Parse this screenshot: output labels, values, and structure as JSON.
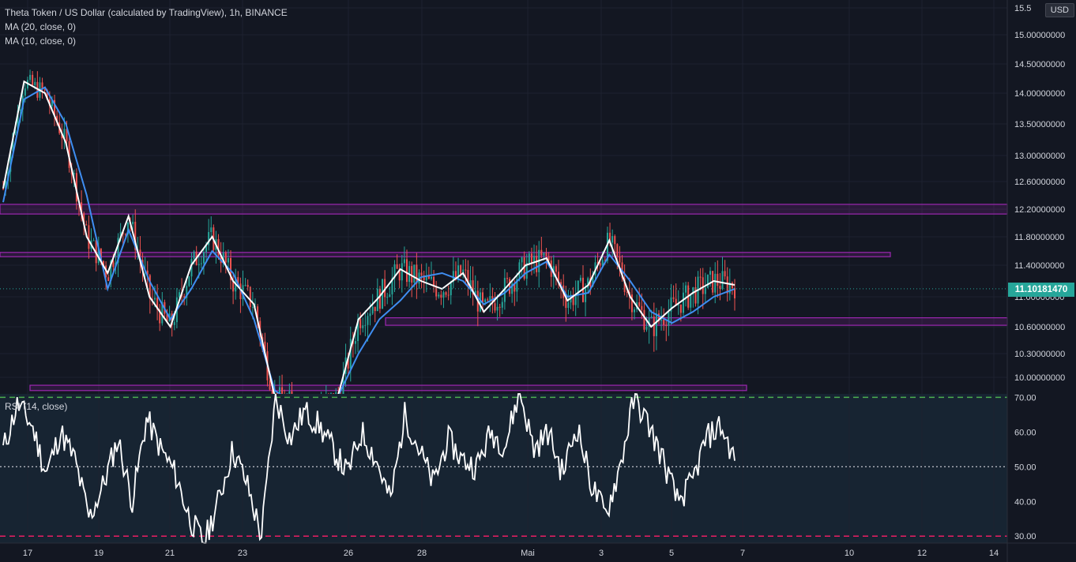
{
  "legend": {
    "title": "Theta Token / US Dollar (calculated by TradingView), 1h, BINANCE",
    "ma20": "MA (20, close, 0)",
    "ma10": "MA (10, close, 0)",
    "rsi": "RSI (14, close)"
  },
  "currency": "USD",
  "current_price": "11.10181470",
  "colors": {
    "background": "#131722",
    "up": "#26a69a",
    "down": "#ef5350",
    "ma20": "#3f8ef2",
    "ma10": "#ffffff",
    "zone": "#9c27b0",
    "rsi_line": "#ffffff",
    "rsi_upper": "#4caf50",
    "rsi_lower": "#e91e63",
    "rsi_bg": "#172432"
  },
  "chart_data": [
    {
      "type": "candlestick",
      "title": "Theta Token / US Dollar (calculated by TradingView), 1h, BINANCE",
      "price_ticks": [
        "15.5",
        "15.00000000",
        "14.50000000",
        "14.00000000",
        "13.50000000",
        "13.00000000",
        "12.60000000",
        "12.20000000",
        "11.80000000",
        "11.40000000",
        "11.00000000",
        "10.60000000",
        "10.30000000",
        "10.00000000"
      ],
      "x_ticks": [
        "17",
        "19",
        "21",
        "23",
        "26",
        "28",
        "Mai",
        "3",
        "5",
        "7",
        "10",
        "12",
        "14"
      ],
      "series": [
        {
          "name": "MA (20, close, 0)",
          "points": [
            [
              0,
              12.3
            ],
            [
              1,
              13.9
            ],
            [
              2,
              14.1
            ],
            [
              3,
              13.5
            ],
            [
              4,
              12.4
            ],
            [
              5,
              11.1
            ],
            [
              6,
              11.9
            ],
            [
              7,
              11.2
            ],
            [
              8,
              10.7
            ],
            [
              9,
              11.1
            ],
            [
              10,
              11.6
            ],
            [
              11,
              11.3
            ],
            [
              12,
              10.7
            ],
            [
              13,
              9.8
            ],
            [
              14,
              9.6
            ],
            [
              15,
              9.6
            ],
            [
              16,
              9.7
            ],
            [
              17,
              10.3
            ],
            [
              18,
              10.7
            ],
            [
              19,
              10.95
            ],
            [
              20,
              11.25
            ],
            [
              21,
              11.3
            ],
            [
              22,
              11.2
            ],
            [
              23,
              10.9
            ],
            [
              24,
              11.05
            ],
            [
              25,
              11.3
            ],
            [
              26,
              11.45
            ],
            [
              27,
              11.0
            ],
            [
              28,
              11.05
            ],
            [
              29,
              11.55
            ],
            [
              30,
              11.2
            ],
            [
              31,
              10.8
            ],
            [
              32,
              10.65
            ],
            [
              33,
              10.8
            ],
            [
              34,
              11.0
            ],
            [
              35,
              11.1
            ]
          ]
        },
        {
          "name": "MA (10, close, 0)",
          "points": [
            [
              0,
              12.5
            ],
            [
              1,
              14.2
            ],
            [
              2,
              14.0
            ],
            [
              3,
              13.2
            ],
            [
              4,
              11.8
            ],
            [
              5,
              11.3
            ],
            [
              6,
              12.1
            ],
            [
              7,
              11.0
            ],
            [
              8,
              10.6
            ],
            [
              9,
              11.4
            ],
            [
              10,
              11.8
            ],
            [
              11,
              11.2
            ],
            [
              12,
              10.9
            ],
            [
              13,
              9.7
            ],
            [
              14,
              9.6
            ],
            [
              15,
              9.6
            ],
            [
              16,
              9.7
            ],
            [
              17,
              10.7
            ],
            [
              18,
              11.0
            ],
            [
              19,
              11.35
            ],
            [
              20,
              11.2
            ],
            [
              21,
              11.1
            ],
            [
              22,
              11.3
            ],
            [
              23,
              10.8
            ],
            [
              24,
              11.1
            ],
            [
              25,
              11.4
            ],
            [
              26,
              11.5
            ],
            [
              27,
              10.95
            ],
            [
              28,
              11.15
            ],
            [
              29,
              11.75
            ],
            [
              30,
              11.0
            ],
            [
              31,
              10.6
            ],
            [
              32,
              10.85
            ],
            [
              33,
              11.05
            ],
            [
              34,
              11.2
            ],
            [
              35,
              11.15
            ]
          ]
        }
      ],
      "zones": [
        {
          "low": 12.13,
          "high": 12.27
        },
        {
          "low": 11.52,
          "high": 11.58
        },
        {
          "low": 10.62,
          "high": 10.72
        },
        {
          "low": 9.8,
          "high": 9.88
        }
      ],
      "last_price": 11.1018147
    },
    {
      "type": "line",
      "title": "RSI (14, close)",
      "y_ticks": [
        "70.00",
        "60.00",
        "50.00",
        "40.00",
        "30.00"
      ],
      "ylim": [
        28,
        71
      ],
      "levels": {
        "upper": 70,
        "middle": 50,
        "lower": 30
      },
      "series": [
        {
          "name": "RSI (14, close)",
          "values": [
            55,
            68,
            62,
            48,
            60,
            52,
            35,
            45,
            58,
            40,
            64,
            55,
            48,
            35,
            28,
            40,
            55,
            45,
            30,
            70,
            58,
            66,
            62,
            55,
            48,
            60,
            52,
            40,
            65,
            55,
            45,
            58,
            52,
            50,
            60,
            56,
            72,
            55,
            60,
            48,
            62,
            45,
            36,
            50,
            70,
            62,
            52,
            40,
            45,
            58,
            62,
            52
          ]
        }
      ]
    }
  ]
}
